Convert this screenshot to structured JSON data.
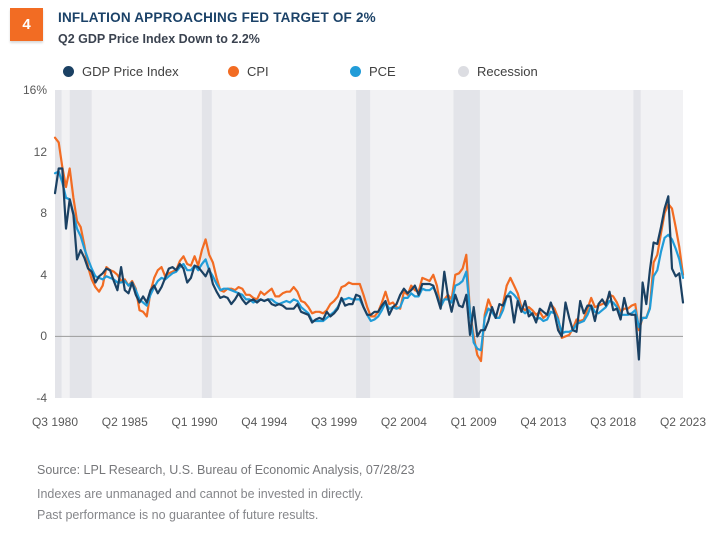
{
  "header": {
    "badge": "4",
    "title": "INFLATION APPROACHING FED TARGET OF 2%",
    "subtitle": "Q2 GDP Price Index Down to 2.2%"
  },
  "legend": [
    {
      "label": "GDP Price Index",
      "color": "#1b4163"
    },
    {
      "label": "CPI",
      "color": "#f26c23"
    },
    {
      "label": "PCE",
      "color": "#219cd8"
    },
    {
      "label": "Recession",
      "color": "#dcdde2"
    }
  ],
  "colors": {
    "plot_background": "#f2f2f4",
    "recession_band": "#e3e4e9",
    "zero_line": "#9b9b9b",
    "title_navy": "#1b4268",
    "accent_orange": "#f26c23"
  },
  "chart_data": {
    "type": "line",
    "title": "INFLATION APPROACHING FED TARGET OF 2%",
    "subtitle": "Q2 GDP Price Index Down to 2.2%",
    "x_unit": "quarters from Q3 1980 to Q2 2023",
    "ylim": [
      -4,
      16
    ],
    "grid": false,
    "zero_line": true,
    "legend_position": "top",
    "y_ticks": [
      {
        "label": "16%",
        "value": 16
      },
      {
        "label": "12",
        "value": 12
      },
      {
        "label": "8",
        "value": 8
      },
      {
        "label": "4",
        "value": 4
      },
      {
        "label": "0",
        "value": 0
      },
      {
        "label": "-4",
        "value": -4
      }
    ],
    "x_ticks": [
      {
        "label": "Q3 1980",
        "quarter_index": 0
      },
      {
        "label": "Q2 1985",
        "quarter_index": 19
      },
      {
        "label": "Q1 1990",
        "quarter_index": 38
      },
      {
        "label": "Q4 1994",
        "quarter_index": 57
      },
      {
        "label": "Q3 1999",
        "quarter_index": 76
      },
      {
        "label": "Q2 2004",
        "quarter_index": 95
      },
      {
        "label": "Q1 2009",
        "quarter_index": 114
      },
      {
        "label": "Q4 2013",
        "quarter_index": 133
      },
      {
        "label": "Q3 2018",
        "quarter_index": 152
      },
      {
        "label": "Q2 2023",
        "quarter_index": 171
      }
    ],
    "recession_bands_quarter_index": [
      [
        0,
        1.8
      ],
      [
        4,
        10
      ],
      [
        40,
        42.7
      ],
      [
        82,
        85.8
      ],
      [
        108.5,
        115.7
      ],
      [
        157.5,
        159.5
      ]
    ],
    "series": [
      {
        "name": "GDP Price Index",
        "color": "#1b4163",
        "values": [
          9.3,
          10.9,
          10.9,
          7.0,
          8.9,
          7.9,
          5.0,
          5.6,
          5.1,
          4.4,
          4.2,
          3.5,
          3.9,
          4.1,
          4.4,
          4.3,
          3.6,
          3.0,
          4.5,
          3.0,
          2.8,
          3.5,
          2.7,
          2.2,
          2.6,
          2.2,
          3.0,
          3.3,
          2.8,
          3.2,
          3.8,
          4.4,
          4.5,
          4.3,
          4.7,
          4.4,
          3.5,
          3.8,
          4.6,
          4.5,
          4.2,
          3.9,
          4.4,
          3.4,
          2.9,
          2.5,
          2.6,
          2.5,
          2.1,
          2.4,
          2.8,
          2.4,
          2.1,
          2.3,
          2.4,
          2.2,
          2.4,
          2.3,
          2.4,
          2.1,
          2.0,
          2.1,
          2.0,
          1.8,
          1.8,
          1.8,
          2.1,
          1.6,
          1.5,
          1.4,
          0.9,
          1.1,
          1.2,
          1.1,
          1.6,
          1.3,
          1.5,
          1.8,
          2.5,
          2.0,
          2.1,
          2.1,
          2.7,
          2.6,
          1.9,
          1.4,
          1.4,
          1.6,
          1.6,
          2.0,
          2.3,
          1.4,
          1.9,
          2.1,
          2.7,
          3.1,
          2.8,
          3.0,
          3.3,
          2.7,
          3.4,
          3.4,
          3.4,
          3.3,
          2.6,
          1.8,
          4.2,
          2.6,
          1.6,
          2.7,
          2.0,
          1.9,
          2.7,
          0.1,
          1.9,
          0.0,
          0.4,
          0.4,
          1.0,
          1.9,
          1.2,
          2.1,
          2.0,
          2.6,
          2.6,
          0.9,
          2.3,
          1.6,
          2.3,
          1.3,
          1.5,
          0.9,
          1.8,
          1.6,
          1.4,
          2.2,
          1.5,
          0.4,
          0.0,
          2.2,
          1.2,
          0.4,
          0.3,
          2.3,
          1.5,
          2.0,
          2.0,
          1.0,
          2.1,
          2.4,
          2.0,
          2.9,
          1.7,
          1.8,
          1.1,
          2.5,
          1.5,
          1.4,
          1.4,
          -1.5,
          3.5,
          2.1,
          4.3,
          6.1,
          6.0,
          7.1,
          8.3,
          9.1,
          4.4,
          3.9,
          4.1,
          2.2
        ]
      },
      {
        "name": "CPI",
        "color": "#f26c23",
        "values": [
          12.9,
          12.6,
          11.0,
          9.7,
          10.9,
          9.0,
          7.5,
          7.1,
          5.9,
          4.5,
          3.7,
          3.2,
          2.9,
          3.3,
          4.5,
          4.3,
          4.2,
          4.0,
          3.6,
          3.7,
          3.3,
          3.6,
          3.1,
          1.7,
          1.6,
          1.3,
          2.9,
          3.8,
          4.3,
          4.5,
          3.9,
          4.1,
          4.2,
          4.3,
          4.9,
          5.2,
          4.7,
          4.6,
          5.2,
          4.6,
          5.6,
          6.3,
          5.3,
          4.8,
          3.8,
          3.0,
          2.9,
          3.1,
          3.1,
          3.0,
          3.2,
          3.1,
          2.7,
          2.7,
          2.5,
          2.4,
          2.9,
          2.7,
          2.9,
          3.1,
          2.6,
          2.6,
          2.8,
          2.9,
          2.9,
          3.2,
          2.9,
          2.3,
          2.2,
          1.9,
          1.5,
          1.6,
          1.6,
          1.5,
          1.7,
          2.1,
          2.3,
          2.6,
          3.2,
          3.3,
          3.5,
          3.4,
          3.4,
          3.4,
          2.7,
          1.9,
          1.3,
          1.3,
          1.6,
          2.2,
          2.9,
          2.1,
          2.2,
          1.9,
          1.8,
          2.9,
          2.7,
          3.3,
          3.0,
          2.9,
          3.8,
          3.7,
          3.6,
          4.0,
          3.3,
          1.9,
          2.4,
          2.7,
          2.4,
          4.0,
          4.1,
          4.4,
          5.3,
          1.6,
          0.0,
          -1.2,
          -1.6,
          1.4,
          2.4,
          1.8,
          1.2,
          1.2,
          2.1,
          3.3,
          3.8,
          3.3,
          2.8,
          1.9,
          1.7,
          1.9,
          1.7,
          1.4,
          1.6,
          1.2,
          1.4,
          2.1,
          1.8,
          1.2,
          -0.1,
          0.0,
          0.1,
          0.5,
          1.1,
          1.0,
          1.1,
          1.8,
          2.5,
          1.9,
          2.0,
          2.1,
          2.2,
          2.7,
          2.6,
          2.2,
          1.6,
          1.8,
          1.8,
          2.0,
          2.1,
          0.4,
          1.2,
          1.2,
          1.9,
          4.8,
          5.3,
          6.7,
          8.0,
          8.6,
          8.3,
          7.1,
          5.8,
          4.0
        ]
      },
      {
        "name": "PCE",
        "color": "#219cd8",
        "values": [
          10.6,
          10.7,
          10.0,
          9.0,
          8.9,
          8.0,
          7.0,
          6.5,
          5.7,
          5.0,
          4.4,
          3.9,
          3.8,
          3.7,
          3.9,
          3.8,
          3.7,
          3.5,
          3.5,
          3.6,
          3.3,
          3.5,
          3.0,
          2.4,
          2.2,
          2.0,
          2.7,
          3.2,
          3.6,
          3.8,
          3.7,
          3.9,
          4.1,
          4.2,
          4.5,
          4.7,
          4.3,
          4.3,
          4.6,
          4.3,
          4.7,
          5.0,
          4.3,
          3.9,
          3.4,
          3.0,
          3.1,
          3.1,
          3.0,
          2.9,
          2.8,
          2.7,
          2.4,
          2.4,
          2.2,
          2.3,
          2.4,
          2.3,
          2.4,
          2.4,
          2.2,
          2.1,
          2.2,
          2.3,
          2.2,
          2.4,
          2.3,
          1.9,
          1.7,
          1.5,
          1.0,
          1.0,
          1.0,
          1.0,
          1.2,
          1.4,
          1.6,
          1.9,
          2.4,
          2.4,
          2.5,
          2.4,
          2.4,
          2.4,
          1.9,
          1.4,
          1.0,
          1.1,
          1.3,
          1.7,
          2.2,
          1.8,
          1.9,
          1.8,
          1.9,
          2.5,
          2.5,
          2.8,
          2.6,
          2.6,
          3.1,
          3.0,
          3.0,
          3.2,
          2.7,
          1.9,
          2.4,
          2.4,
          2.2,
          3.3,
          3.4,
          3.6,
          4.2,
          1.6,
          -0.4,
          -0.8,
          -0.9,
          1.2,
          1.8,
          1.6,
          1.2,
          1.2,
          1.7,
          2.6,
          2.9,
          2.7,
          2.4,
          1.7,
          1.5,
          1.7,
          1.4,
          1.1,
          1.2,
          1.0,
          1.1,
          1.6,
          1.5,
          1.1,
          0.2,
          0.3,
          0.3,
          0.4,
          0.8,
          0.9,
          1.0,
          1.4,
          2.0,
          1.6,
          1.5,
          1.7,
          1.9,
          2.3,
          2.2,
          1.9,
          1.4,
          1.4,
          1.4,
          1.5,
          1.7,
          0.6,
          1.2,
          1.2,
          1.8,
          3.9,
          4.3,
          5.5,
          6.4,
          6.6,
          6.3,
          5.7,
          5.0,
          3.8
        ]
      }
    ]
  },
  "footer": {
    "source": "Source: LPL Research, U.S. Bureau of Economic Analysis,  07/28/23",
    "disclaimer1": "Indexes are unmanaged and cannot be invested in directly.",
    "disclaimer2": "Past performance is no guarantee of future results."
  }
}
